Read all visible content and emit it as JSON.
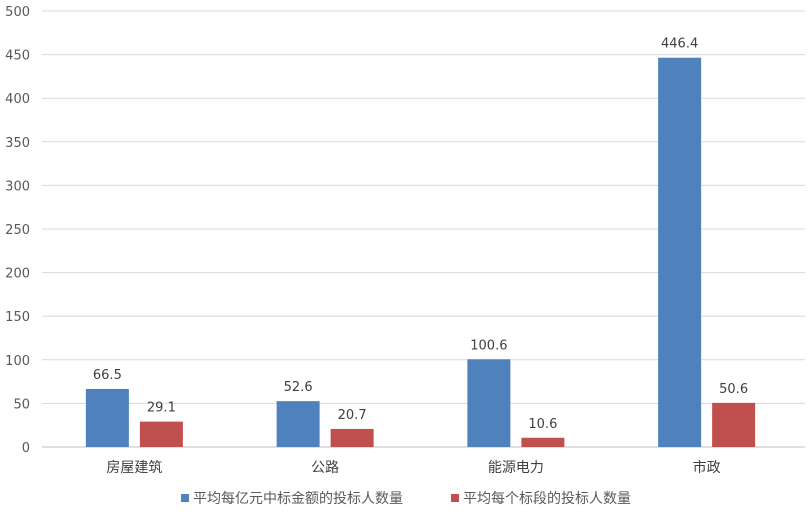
{
  "chart_data": {
    "type": "bar",
    "categories": [
      "房屋建筑",
      "公路",
      "能源电力",
      "市政"
    ],
    "series": [
      {
        "name": "平均每亿元中标金额的投标人数量",
        "values": [
          66.5,
          52.6,
          100.6,
          446.4
        ],
        "color": "#4f81bd"
      },
      {
        "name": "平均每个标段的投标人数量",
        "values": [
          29.1,
          20.7,
          10.6,
          50.6
        ],
        "color": "#c0504d"
      }
    ],
    "data_labels": [
      [
        "66.5",
        "52.6",
        "100.6",
        "446.4"
      ],
      [
        "29.1",
        "20.7",
        "10.6",
        "50.6"
      ]
    ],
    "yticks": [
      "0",
      "50",
      "100",
      "150",
      "200",
      "250",
      "300",
      "350",
      "400",
      "450",
      "500"
    ],
    "ylim": [
      0,
      500
    ],
    "grid": true,
    "legend": "bottom",
    "title": "",
    "xlabel": "",
    "ylabel": ""
  }
}
